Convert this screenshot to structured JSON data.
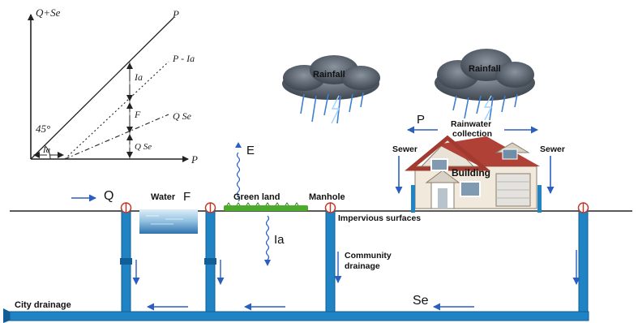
{
  "graph": {
    "y_axis_label": "Q+Se",
    "x_axis_label": "P",
    "line_p": "P",
    "line_p_ia": "P - Ia",
    "line_q_se": "Q  Se",
    "angle_label": "45°",
    "ia_base": "Ia",
    "seg_ia": "Ia",
    "seg_f": "F",
    "seg_q_se": "Q  Se"
  },
  "scene": {
    "rainfall_left": "Rainfall",
    "rainfall_right": "Rainfall",
    "p_label": "P",
    "rainwater_collection": "Rainwater\ncollection",
    "sewer_left": "Sewer",
    "sewer_right": "Sewer",
    "building": "Building",
    "e_label": "E",
    "q_label": "Q",
    "water_label": "Water",
    "f_label": "F",
    "green_land": "Green land",
    "manhole": "Manhole",
    "impervious_surfaces": "Impervious surfaces",
    "ia_label": "Ia",
    "community_drainage": "Community\ndrainage",
    "se_label": "Se",
    "city_drainage": "City drainage"
  },
  "colors": {
    "pipe": "#1f83c4",
    "pipe_dark": "#115d96",
    "arrow": "#2b5fbf",
    "valve": "#c0392b",
    "grass": "#4caa2c",
    "cloud": "#5a6470",
    "rain": "#3f7fd0"
  }
}
